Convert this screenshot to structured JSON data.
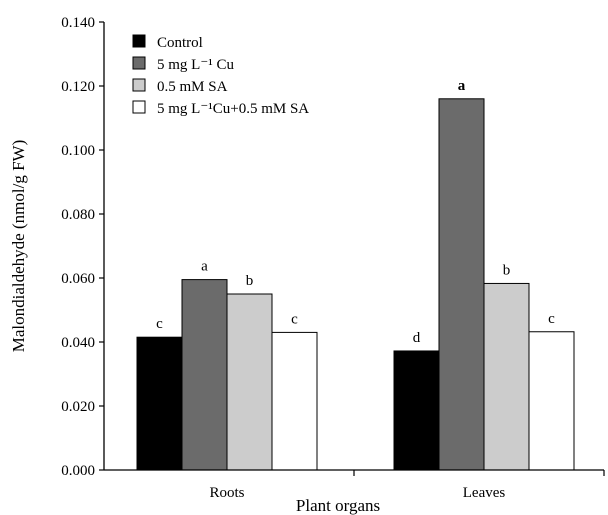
{
  "chart_data": {
    "type": "bar",
    "categories": [
      "Roots",
      "Leaves"
    ],
    "xlabel": "Plant organs",
    "ylabel": "Malondialdehyde (nmol/g FW)",
    "ylim": [
      0,
      0.14
    ],
    "yticks": [
      "0.000",
      "0.020",
      "0.040",
      "0.060",
      "0.080",
      "0.100",
      "0.120",
      "0.140"
    ],
    "grid": false,
    "legend_position": "top-left",
    "series": [
      {
        "name": "Control",
        "color": "#000000",
        "values": [
          0.0415,
          0.0372
        ],
        "letters": [
          "c",
          "d"
        ]
      },
      {
        "name": "5 mg L⁻¹ Cu",
        "color": "#6b6b6b",
        "values": [
          0.0595,
          0.116
        ],
        "letters": [
          "a",
          "a"
        ]
      },
      {
        "name": "0.5 mM SA",
        "color": "#cccccc",
        "values": [
          0.055,
          0.0583
        ],
        "letters": [
          "b",
          "b"
        ]
      },
      {
        "name": "5 mg L⁻¹Cu+0.5 mM SA",
        "color": "#ffffff",
        "values": [
          0.043,
          0.0432
        ],
        "letters": [
          "c",
          "c"
        ]
      }
    ]
  }
}
